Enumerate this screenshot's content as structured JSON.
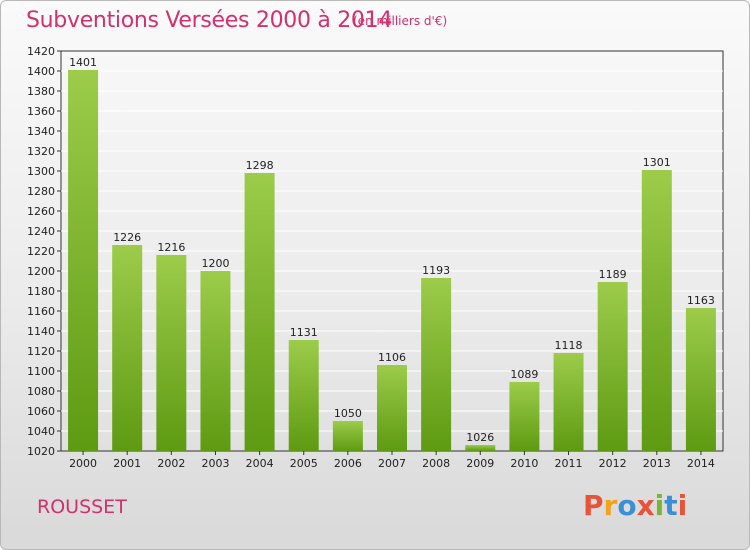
{
  "header": {
    "title": "Subventions Versées 2000 à 2014",
    "subtitle": "(en milliers d'€)"
  },
  "footer": {
    "commune": "ROUSSET",
    "logo_text": "Proxiti"
  },
  "colors": {
    "title": "#d2306e",
    "bar_light": "#9ccc4a",
    "bar_dark": "#5e9a12",
    "grid": "#ffffff",
    "logo": [
      "#e8543a",
      "#f4a21b",
      "#3b8fd6",
      "#e8543a",
      "#7ab535",
      "#3b8fd6",
      "#e8543a"
    ]
  },
  "chart_data": {
    "type": "bar",
    "categories": [
      "2000",
      "2001",
      "2002",
      "2003",
      "2004",
      "2005",
      "2006",
      "2007",
      "2008",
      "2009",
      "2010",
      "2011",
      "2012",
      "2013",
      "2014"
    ],
    "values": [
      1401,
      1226,
      1216,
      1200,
      1298,
      1131,
      1050,
      1106,
      1193,
      1026,
      1089,
      1118,
      1189,
      1301,
      1163
    ],
    "title": "Subventions Versées 2000 à 2014",
    "subtitle": "(en milliers d'€)",
    "xlabel": "",
    "ylabel": "",
    "ylim": [
      1020,
      1420
    ],
    "ytick_step": 20,
    "grid": true,
    "legend": "none"
  }
}
